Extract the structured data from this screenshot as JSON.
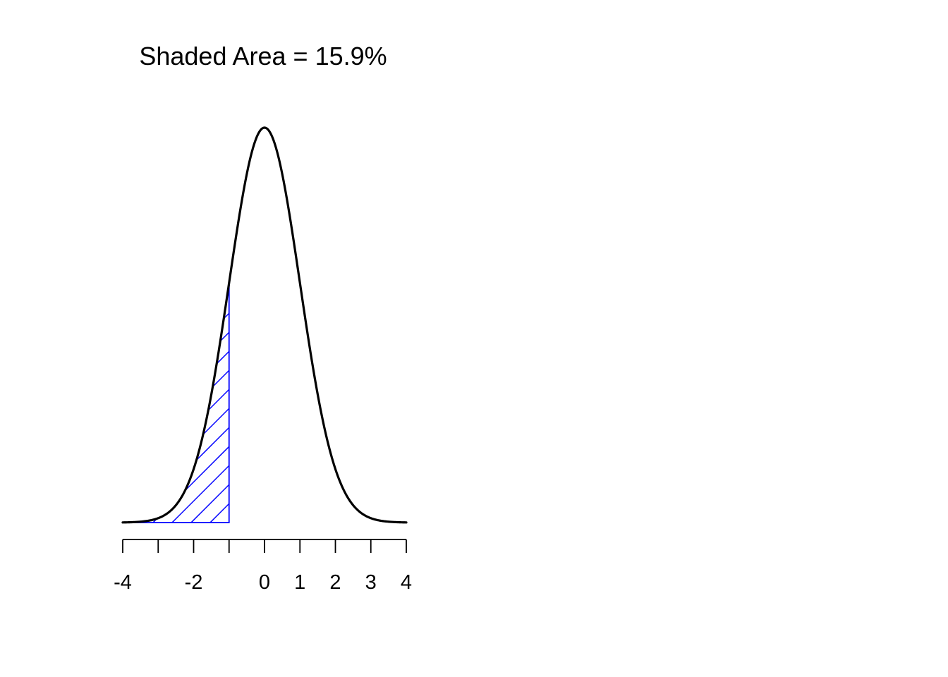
{
  "chart_data": {
    "type": "area",
    "title": "Shaded Area = 15.9%",
    "distribution": "standard normal density",
    "mean": 0,
    "sd": 1,
    "xlim": [
      -4,
      4
    ],
    "shaded_region": {
      "from": -4,
      "to": -1,
      "area_percent": 15.9,
      "fill": "diagonal-hatch"
    },
    "x_ticks": [
      -4,
      -3,
      -2,
      -1,
      0,
      1,
      2,
      3,
      4
    ],
    "x_tick_labels": [
      {
        "value": -4,
        "label": "-4"
      },
      {
        "value": -2,
        "label": "-2"
      },
      {
        "value": 0,
        "label": "0"
      },
      {
        "value": 1,
        "label": "1"
      },
      {
        "value": 2,
        "label": "2"
      },
      {
        "value": 3,
        "label": "3"
      },
      {
        "value": 4,
        "label": "4"
      }
    ],
    "y_axis": "none",
    "grid": false,
    "legend": "none"
  },
  "colors": {
    "curve": "#000000",
    "shade": "#0000ff",
    "axis": "#000000",
    "background": "#ffffff"
  }
}
